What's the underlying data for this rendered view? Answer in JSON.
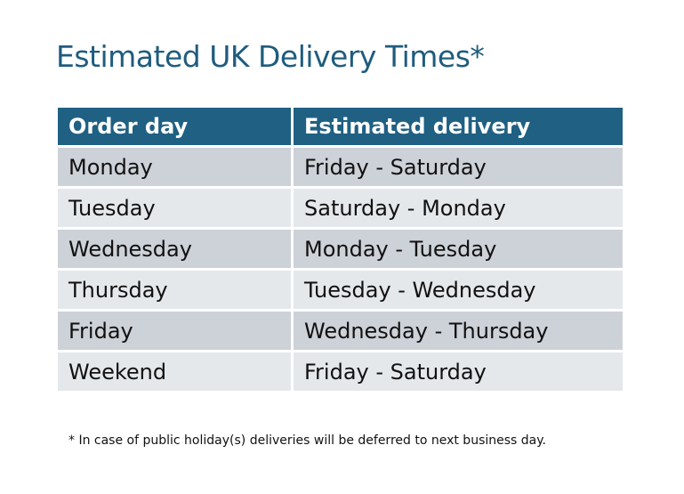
{
  "title": "Estimated UK Delivery Times*",
  "table": {
    "headers": [
      "Order day",
      "Estimated delivery"
    ],
    "rows": [
      [
        "Monday",
        "Friday - Saturday"
      ],
      [
        "Tuesday",
        "Saturday - Monday"
      ],
      [
        "Wednesday",
        "Monday - Tuesday"
      ],
      [
        "Thursday",
        "Tuesday - Wednesday"
      ],
      [
        "Friday",
        "Wednesday - Thursday"
      ],
      [
        "Weekend",
        "Friday - Saturday"
      ]
    ]
  },
  "footnote": "* In case of public holiday(s) deliveries will be deferred to next business day.",
  "colors": {
    "header": "#1F6083",
    "row_dark": "#CDD1D8",
    "row_light": "#E5E8EB",
    "title": "#1F5C7E"
  }
}
